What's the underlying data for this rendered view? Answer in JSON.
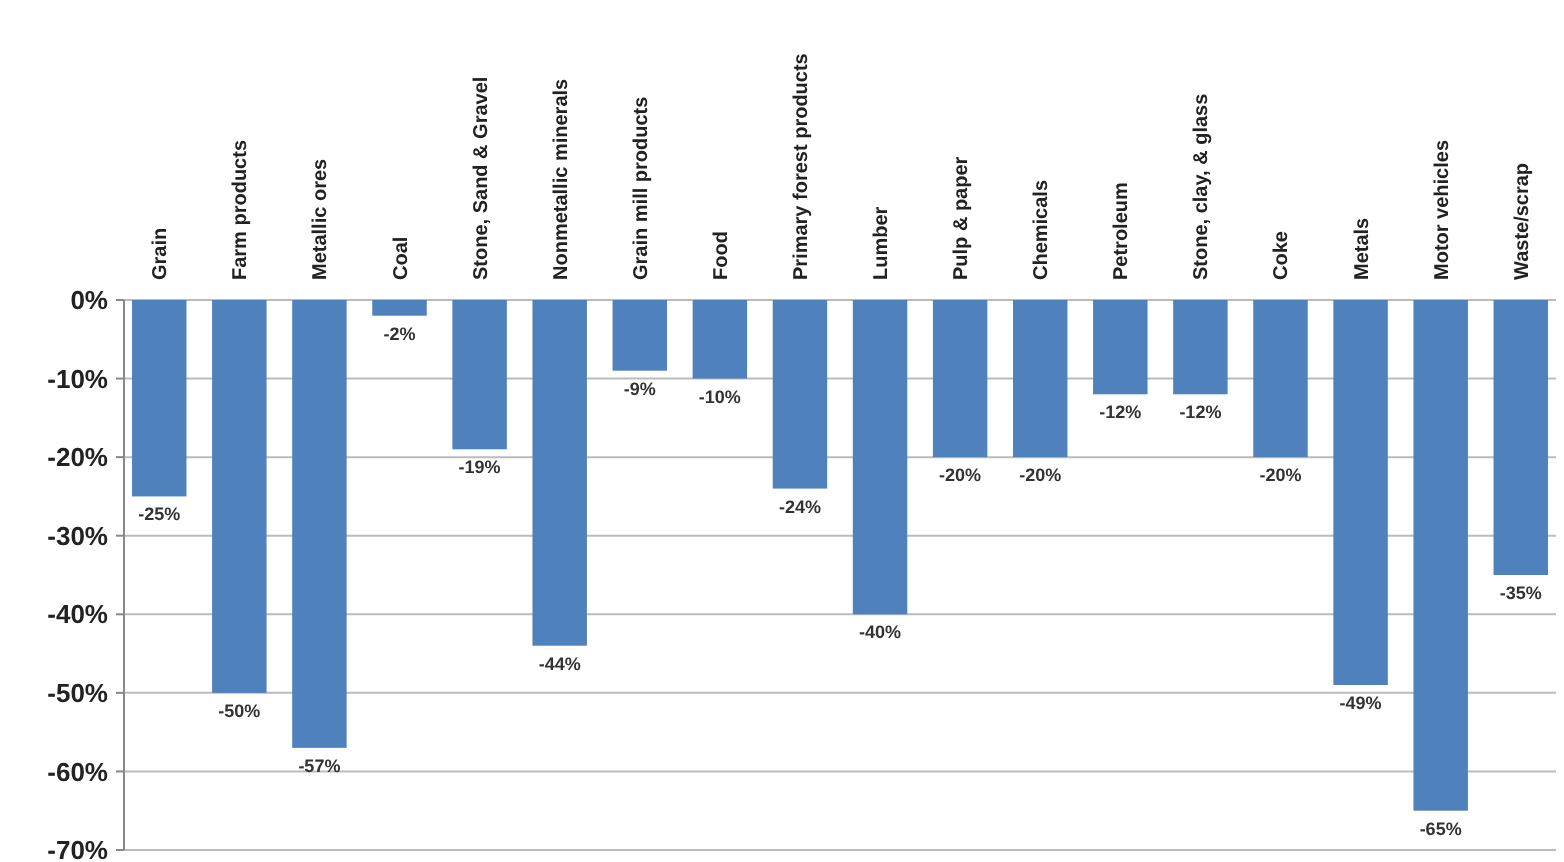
{
  "chart_data": {
    "type": "bar",
    "categories": [
      "Grain",
      "Farm products",
      "Metallic ores",
      "Coal",
      "Stone, Sand & Gravel",
      "Nonmetallic minerals",
      "Grain mill products",
      "Food",
      "Primary forest products",
      "Lumber",
      "Pulp & paper",
      "Chemicals",
      "Petroleum",
      "Stone, clay, & glass",
      "Coke",
      "Metals",
      "Motor vehicles",
      "Waste/scrap"
    ],
    "values": [
      -25,
      -50,
      -57,
      -2,
      -19,
      -44,
      -9,
      -10,
      -24,
      -40,
      -20,
      -20,
      -12,
      -12,
      -20,
      -49,
      -65,
      -35
    ],
    "value_labels": [
      "-25%",
      "-50%",
      "-57%",
      "-2%",
      "-19%",
      "-44%",
      "-9%",
      "-10%",
      "-24%",
      "-40%",
      "-20%",
      "-20%",
      "-12%",
      "-12%",
      "-20%",
      "-49%",
      "-65%",
      "-35%"
    ],
    "color": "#4f81bd",
    "ylim": [
      -70,
      0
    ],
    "yticks": [
      {
        "value": 0,
        "label": "0%"
      },
      {
        "value": -10,
        "label": "-10%"
      },
      {
        "value": -20,
        "label": "-20%"
      },
      {
        "value": -30,
        "label": "-30%"
      },
      {
        "value": -40,
        "label": "-40%"
      },
      {
        "value": -50,
        "label": "-50%"
      },
      {
        "value": -60,
        "label": "-60%"
      },
      {
        "value": -70,
        "label": "-70%"
      }
    ],
    "grid": "y"
  }
}
